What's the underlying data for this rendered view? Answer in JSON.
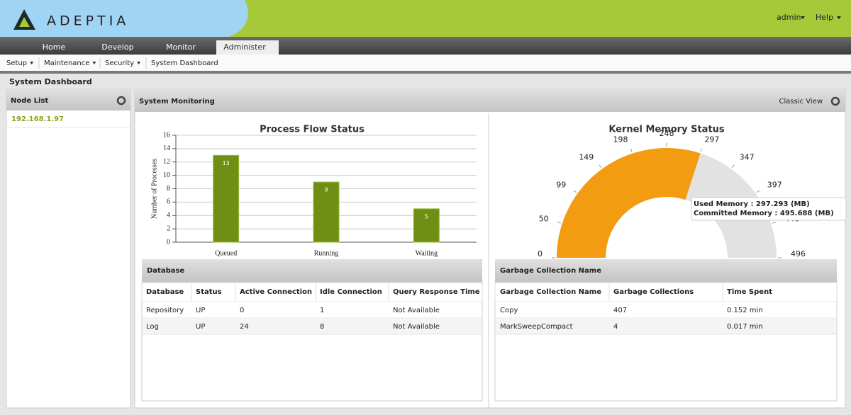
{
  "header": {
    "logo": "ADEPTIA",
    "user": "admin",
    "help": "Help"
  },
  "tabs": [
    "Home",
    "Develop",
    "Monitor",
    "Administer"
  ],
  "submenu": [
    "Setup",
    "Maintenance",
    "Security",
    "System Dashboard"
  ],
  "page_title": "System Dashboard",
  "node_list": {
    "title": "Node List",
    "nodes": [
      "192.168.1.97"
    ]
  },
  "monitoring": {
    "title": "System Monitoring",
    "classic_view": "Classic View"
  },
  "chart_data": [
    {
      "type": "bar",
      "title": "Process Flow Status",
      "y_label": "Number of Processes",
      "categories": [
        "Queued",
        "Running",
        "Waiting"
      ],
      "values": [
        13,
        9,
        5
      ],
      "color": "#6f8f14",
      "ylim": [
        0,
        16
      ],
      "yticks": [
        0,
        2,
        4,
        6,
        8,
        10,
        12,
        14,
        16
      ],
      "grid": true
    },
    {
      "type": "gauge",
      "title": "Kernel Memory Status",
      "ylim": [
        0,
        496
      ],
      "yticks": [
        0,
        50,
        99,
        149,
        198,
        248,
        297,
        347,
        397,
        446,
        496
      ],
      "value": 297.293,
      "color": "#f39c12",
      "track_color": "#e2e2e2",
      "tooltip": [
        "Used Memory : 297.293 (MB)",
        "Committed Memory : 495.688 (MB)"
      ]
    }
  ],
  "database": {
    "title": "Database",
    "columns": [
      "Database",
      "Status",
      "Active Connection",
      "Idle Connection",
      "Query Response Time"
    ],
    "rows": [
      [
        "Repository",
        "UP",
        "0",
        "1",
        "Not Available"
      ],
      [
        "Log",
        "UP",
        "24",
        "8",
        "Not Available"
      ]
    ]
  },
  "garbage": {
    "title": "Garbage Collection Name",
    "columns": [
      "Garbage Collection Name",
      "Garbage Collections",
      "Time Spent"
    ],
    "rows": [
      [
        "Copy",
        "407",
        "0.152 min"
      ],
      [
        "MarkSweepCompact",
        "4",
        "0.017 min"
      ]
    ]
  }
}
